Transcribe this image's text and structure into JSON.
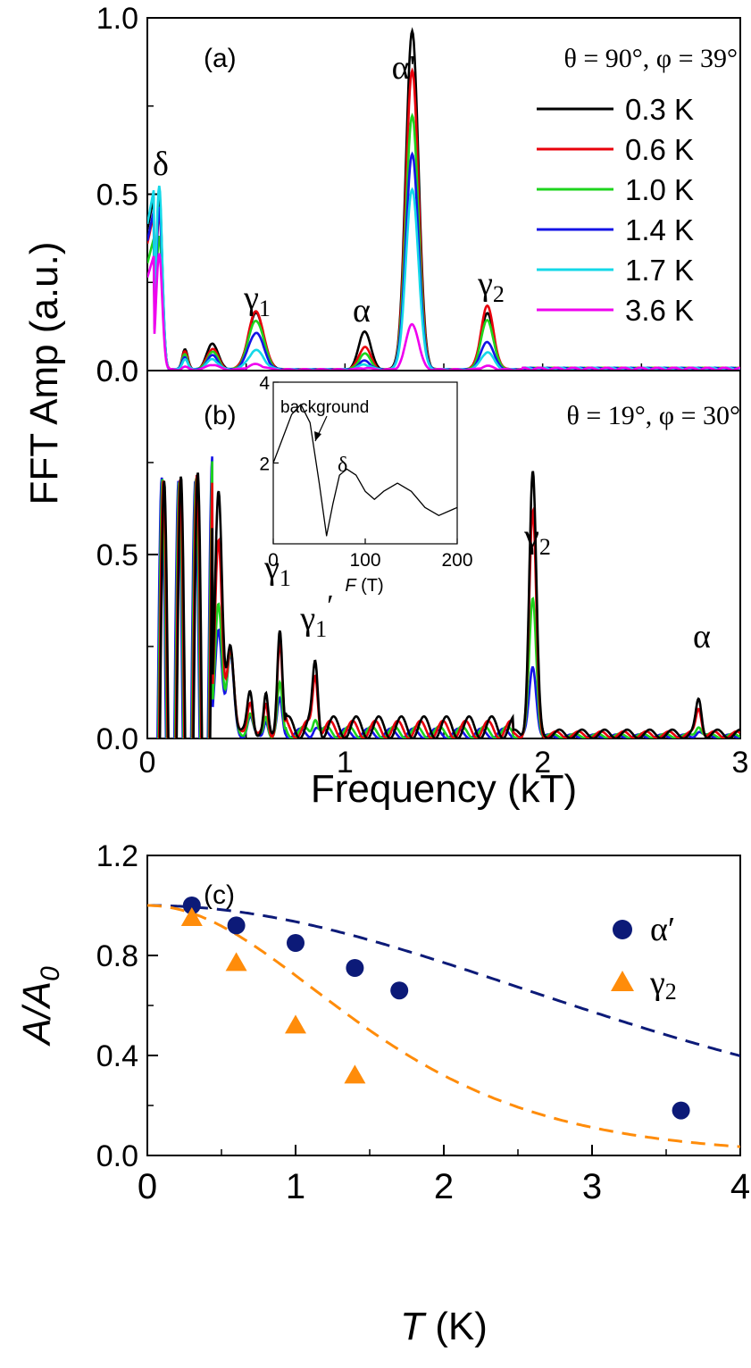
{
  "chart_data": [
    {
      "id": "a",
      "type": "line",
      "panel_label": "(a)",
      "angle_label": "θ = 90°, φ = 39°",
      "ylabel": "FFT Amp (a.u.)",
      "xlim": [
        0,
        3
      ],
      "ylim": [
        0,
        1.0
      ],
      "yticks": [
        "0.0",
        "0.5",
        "1.0"
      ],
      "legend_position": "top-right",
      "peaks": [
        {
          "label": "δ",
          "freq": 0.07
        },
        {
          "label": "γ",
          "sub": "1",
          "freq": 0.55
        },
        {
          "label": "α",
          "freq": 1.1
        },
        {
          "label": "α'",
          "freq": 1.34
        },
        {
          "label": "γ",
          "sub": "2",
          "freq": 1.72
        }
      ],
      "series": [
        {
          "name": "0.3 K",
          "color": "#000000",
          "peaks": [
            0.5,
            0.075,
            0.16,
            0.11,
            0.96,
            0.16
          ]
        },
        {
          "name": "0.6 K",
          "color": "#e8000b",
          "peaks": [
            0.45,
            0.06,
            0.165,
            0.065,
            0.85,
            0.18
          ]
        },
        {
          "name": "1.0 K",
          "color": "#1ed41e",
          "peaks": [
            0.38,
            0.05,
            0.14,
            0.045,
            0.72,
            0.14
          ]
        },
        {
          "name": "1.4 K",
          "color": "#1414e6",
          "peaks": [
            0.46,
            0.04,
            0.105,
            0.025,
            0.61,
            0.08
          ]
        },
        {
          "name": "1.7 K",
          "color": "#14d8e8",
          "peaks": [
            0.52,
            0.03,
            0.055,
            0.015,
            0.51,
            0.05
          ]
        },
        {
          "name": "3.6 K",
          "color": "#ef00ef",
          "peaks": [
            0.33,
            0.015,
            0.015,
            0.005,
            0.13,
            0.01
          ]
        }
      ]
    },
    {
      "id": "b",
      "type": "line",
      "panel_label": "(b)",
      "angle_label": "θ = 19°, φ = 30°",
      "xlabel": "Frequency (kT)",
      "xlim": [
        0,
        3
      ],
      "ylim": [
        0,
        1.0
      ],
      "xticks": [
        "0",
        "1",
        "2",
        "3"
      ],
      "yticks": [
        "0.0",
        "0.5"
      ],
      "peaks": [
        {
          "label": "γ",
          "sub": "1",
          "freq": 0.67
        },
        {
          "label": "γ",
          "sub": "1",
          "prime": "′",
          "freq": 0.85
        },
        {
          "label": "γ",
          "sub": "2",
          "freq": 1.95
        },
        {
          "label": "α",
          "freq": 2.79
        }
      ],
      "series": [
        {
          "name": "0.3 K",
          "color": "#000000",
          "peaks": [
            0.29,
            0.17,
            0.71,
            0.09
          ]
        },
        {
          "name": "0.6 K",
          "color": "#e8000b",
          "peaks": [
            0.25,
            0.16,
            0.6,
            0.075
          ]
        },
        {
          "name": "1.0 K",
          "color": "#1ed41e",
          "peaks": [
            0.14,
            0.05,
            0.37,
            0.03
          ]
        },
        {
          "name": "1.4 K",
          "color": "#1414e6",
          "peaks": [
            0.1,
            0.02,
            0.19,
            0.015
          ]
        }
      ],
      "inset": {
        "xlabel_italic": "F",
        "xlabel_rest": " (T)",
        "xlim": [
          0,
          200
        ],
        "ylim": [
          0,
          4
        ],
        "xticks": [
          "0",
          "100",
          "200"
        ],
        "yticks": [
          "2",
          "4"
        ],
        "annotation_background": "background",
        "annotation_delta": "δ",
        "x": [
          0,
          10,
          20,
          30,
          40,
          50,
          58,
          65,
          72,
          80,
          90,
          100,
          110,
          120,
          135,
          150,
          165,
          180,
          200
        ],
        "y": [
          2.0,
          2.6,
          3.2,
          3.45,
          3.0,
          1.5,
          0.2,
          1.0,
          1.7,
          1.85,
          1.7,
          1.3,
          1.1,
          1.3,
          1.5,
          1.3,
          0.9,
          0.7,
          0.9
        ]
      }
    },
    {
      "id": "c",
      "type": "scatter",
      "panel_label": "(c)",
      "xlabel_italic": "T",
      "xlabel_rest": " (K)",
      "ylabel_italic": "A/A",
      "ylabel_sub": "0",
      "xlim": [
        0,
        4
      ],
      "ylim": [
        0,
        1.2
      ],
      "xticks": [
        "0",
        "1",
        "2",
        "3",
        "4"
      ],
      "yticks": [
        "0.0",
        "0.4",
        "0.8",
        "1.2"
      ],
      "legend_position": "top-right",
      "series": [
        {
          "name": "α′",
          "marker": "circle",
          "color": "#0c1a78",
          "x": [
            0.3,
            0.6,
            1.0,
            1.4,
            1.7,
            3.6
          ],
          "y": [
            1.0,
            0.92,
            0.85,
            0.75,
            0.66,
            0.18
          ]
        },
        {
          "name": "γ",
          "name_sub": "2",
          "marker": "triangle",
          "color": "#ff8c0a",
          "x": [
            0.3,
            0.6,
            1.0,
            1.4
          ],
          "y": [
            0.95,
            0.77,
            0.52,
            0.32
          ]
        }
      ],
      "fits": [
        {
          "series": "α′",
          "color": "#0c1a78",
          "style": "dashed"
        },
        {
          "series": "γ2",
          "color": "#ff8c0a",
          "style": "dashed"
        }
      ]
    }
  ]
}
